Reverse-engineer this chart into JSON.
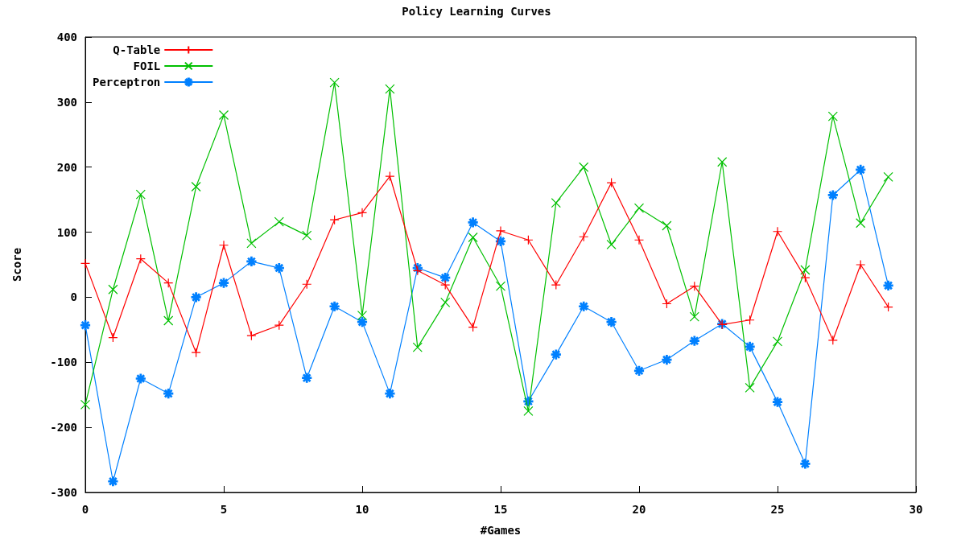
{
  "chart_data": {
    "type": "line",
    "title": "Policy Learning Curves",
    "xlabel": "#Games",
    "ylabel": "Score",
    "x": [
      0,
      1,
      2,
      3,
      4,
      5,
      6,
      7,
      8,
      9,
      10,
      11,
      12,
      13,
      14,
      15,
      16,
      17,
      18,
      19,
      20,
      21,
      22,
      23,
      24,
      25,
      26,
      27,
      28,
      29
    ],
    "series": [
      {
        "name": "Q-Table",
        "color": "#ff0000",
        "marker": "plus",
        "values": [
          52,
          -62,
          59,
          22,
          -85,
          80,
          -59,
          -43,
          20,
          119,
          130,
          186,
          41,
          19,
          -46,
          102,
          88,
          19,
          93,
          176,
          88,
          -10,
          17,
          -42,
          -35,
          101,
          30,
          -66,
          50,
          -15
        ]
      },
      {
        "name": "FOIL",
        "color": "#00c000",
        "marker": "cross",
        "values": [
          -165,
          12,
          158,
          -36,
          170,
          280,
          83,
          116,
          95,
          330,
          -28,
          320,
          -77,
          -8,
          92,
          17,
          -175,
          145,
          200,
          81,
          137,
          110,
          -30,
          208,
          -139,
          -68,
          42,
          278,
          114,
          185
        ]
      },
      {
        "name": "Perceptron",
        "color": "#0080ff",
        "marker": "star",
        "values": [
          -43,
          -283,
          -125,
          -148,
          0,
          22,
          55,
          45,
          -124,
          -14,
          -38,
          -148,
          45,
          30,
          115,
          86,
          -160,
          -88,
          -14,
          -38,
          -113,
          -96,
          -67,
          -41,
          -76,
          -161,
          -256,
          157,
          196,
          18
        ]
      }
    ],
    "xlim": [
      0,
      30
    ],
    "xticks": [
      0,
      5,
      10,
      15,
      20,
      25,
      30
    ],
    "ylim": [
      -300,
      400
    ],
    "yticks": [
      -300,
      -200,
      -100,
      0,
      100,
      200,
      300,
      400
    ],
    "grid": false,
    "legend": "top left",
    "line_style": "solid"
  }
}
